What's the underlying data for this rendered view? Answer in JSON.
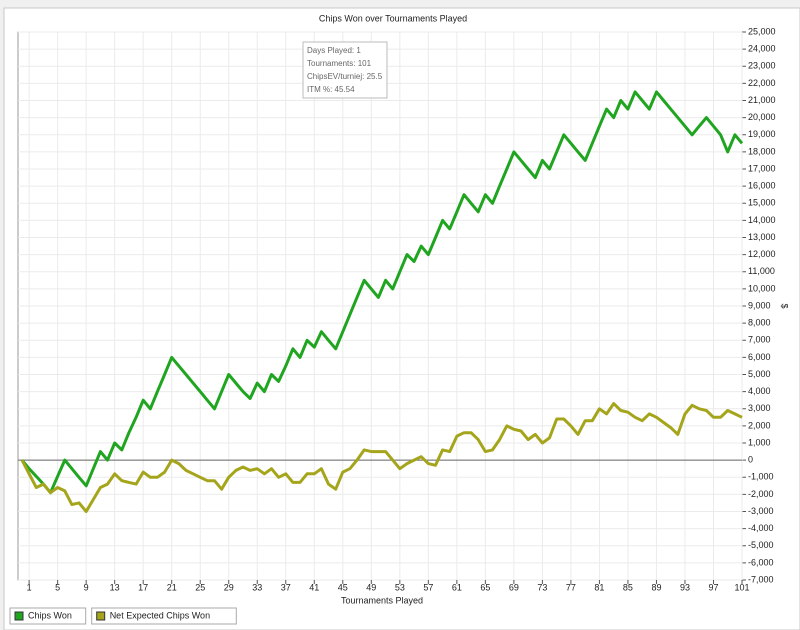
{
  "chart_data": {
    "type": "line",
    "title": "Chips Won over Tournaments Played",
    "x_label": "Tournaments Played",
    "y_label": "$",
    "info_box": [
      "Days Played: 1",
      "Tournaments: 101",
      "ChipsEV/turniej: 25.5",
      "ITM %: 45.54"
    ],
    "x": [
      0,
      1,
      2,
      3,
      4,
      5,
      6,
      7,
      8,
      9,
      10,
      11,
      12,
      13,
      14,
      15,
      16,
      17,
      18,
      19,
      20,
      21,
      22,
      23,
      24,
      25,
      26,
      27,
      28,
      29,
      30,
      31,
      32,
      33,
      34,
      35,
      36,
      37,
      38,
      39,
      40,
      41,
      42,
      43,
      44,
      45,
      46,
      47,
      48,
      49,
      50,
      51,
      52,
      53,
      54,
      55,
      56,
      57,
      58,
      59,
      60,
      61,
      62,
      63,
      64,
      65,
      66,
      67,
      68,
      69,
      70,
      71,
      72,
      73,
      74,
      75,
      76,
      77,
      78,
      79,
      80,
      81,
      82,
      83,
      84,
      85,
      86,
      87,
      88,
      89,
      90,
      91,
      92,
      93,
      94,
      95,
      96,
      97,
      98,
      99,
      100,
      101
    ],
    "series": [
      {
        "name": "Chips Won",
        "color": "#1fa51f",
        "values": [
          0,
          -500,
          -950,
          -1400,
          -1900,
          -950,
          0,
          -500,
          -1000,
          -1500,
          -500,
          500,
          0,
          1000,
          600,
          1600,
          2500,
          3500,
          3000,
          4000,
          5000,
          6000,
          5500,
          5000,
          4500,
          4000,
          3500,
          3000,
          4000,
          5000,
          4500,
          4000,
          3600,
          4500,
          4000,
          5000,
          4600,
          5500,
          6500,
          6000,
          7000,
          6600,
          7500,
          7000,
          6500,
          7500,
          8500,
          9500,
          10500,
          10000,
          9500,
          10500,
          10000,
          11000,
          12000,
          11600,
          12500,
          12000,
          13000,
          14000,
          13500,
          14500,
          15500,
          15000,
          14500,
          15500,
          15000,
          16000,
          17000,
          18000,
          17500,
          17000,
          16500,
          17500,
          17000,
          18000,
          19000,
          18500,
          18000,
          17500,
          18500,
          19500,
          20500,
          20000,
          21000,
          20500,
          21500,
          21000,
          20500,
          21500,
          21000,
          20500,
          20000,
          19500,
          19000,
          19500,
          20000,
          19500,
          19000,
          18000,
          19000,
          18500
        ]
      },
      {
        "name": "Net Expected Chips Won",
        "color": "#a5a51c",
        "values": [
          0,
          -800,
          -1600,
          -1400,
          -1900,
          -1600,
          -1800,
          -2600,
          -2500,
          -3000,
          -2300,
          -1600,
          -1400,
          -800,
          -1200,
          -1300,
          -1400,
          -700,
          -1000,
          -1000,
          -700,
          0,
          -200,
          -600,
          -800,
          -1000,
          -1200,
          -1200,
          -1700,
          -1000,
          -600,
          -400,
          -600,
          -500,
          -800,
          -500,
          -1000,
          -800,
          -1300,
          -1300,
          -800,
          -800,
          -500,
          -1400,
          -1700,
          -700,
          -500,
          0,
          600,
          500,
          500,
          500,
          0,
          -500,
          -200,
          0,
          200,
          -200,
          -300,
          600,
          500,
          1400,
          1600,
          1600,
          1200,
          500,
          600,
          1200,
          2000,
          1800,
          1700,
          1200,
          1500,
          1000,
          1300,
          2400,
          2400,
          2000,
          1500,
          2300,
          2300,
          3000,
          2700,
          3300,
          2900,
          2800,
          2500,
          2300,
          2700,
          2500,
          2200,
          1900,
          1500,
          2700,
          3200,
          3000,
          2900,
          2500,
          2500,
          2900,
          2700,
          2500
        ]
      }
    ],
    "xlim": [
      0,
      101
    ],
    "xticks": [
      1,
      5,
      9,
      13,
      17,
      21,
      25,
      29,
      33,
      37,
      41,
      45,
      49,
      53,
      57,
      61,
      65,
      69,
      73,
      77,
      81,
      85,
      89,
      93,
      97,
      101
    ],
    "ylim": [
      -7000,
      25000
    ],
    "yticks": [
      {
        "value": -7000,
        "label": "-7,000"
      },
      {
        "value": -6000,
        "label": "-6,000"
      },
      {
        "value": -5000,
        "label": "-5,000"
      },
      {
        "value": -4000,
        "label": "-4,000"
      },
      {
        "value": -3000,
        "label": "-3,000"
      },
      {
        "value": -2000,
        "label": "-2,000"
      },
      {
        "value": -1000,
        "label": "-1,000"
      },
      0,
      {
        "value": 1000,
        "label": "1,000"
      },
      {
        "value": 2000,
        "label": "2,000"
      },
      {
        "value": 3000,
        "label": "3,000"
      },
      {
        "value": 4000,
        "label": "4,000"
      },
      {
        "value": 5000,
        "label": "5,000"
      },
      {
        "value": 6000,
        "label": "6,000"
      },
      {
        "value": 7000,
        "label": "7,000"
      },
      {
        "value": 8000,
        "label": "8,000"
      },
      {
        "value": 9000,
        "label": "9,000"
      },
      {
        "value": 10000,
        "label": "10,000"
      },
      {
        "value": 11000,
        "label": "11,000"
      },
      {
        "value": 12000,
        "label": "12,000"
      },
      {
        "value": 13000,
        "label": "13,000"
      },
      {
        "value": 14000,
        "label": "14,000"
      },
      {
        "value": 15000,
        "label": "15,000"
      },
      {
        "value": 16000,
        "label": "16,000"
      },
      {
        "value": 17000,
        "label": "17,000"
      },
      {
        "value": 18000,
        "label": "18,000"
      },
      {
        "value": 19000,
        "label": "19,000"
      },
      {
        "value": 20000,
        "label": "20,000"
      },
      {
        "value": 21000,
        "label": "21,000"
      },
      {
        "value": 22000,
        "label": "22,000"
      },
      {
        "value": 23000,
        "label": "23,000"
      },
      {
        "value": 24000,
        "label": "24,000"
      },
      {
        "value": 25000,
        "label": "25,000"
      }
    ],
    "grid": true,
    "zero_line": true,
    "legend": "bottom-left"
  }
}
